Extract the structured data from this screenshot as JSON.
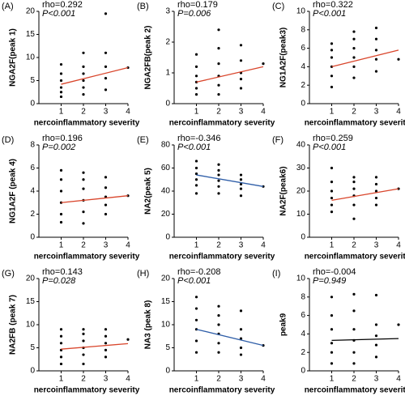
{
  "chart_data": [
    {
      "type": "scatter",
      "title": "(A)",
      "annotations": [
        "rho=0.292",
        "P<0.001"
      ],
      "x_label": "nercoinflammatory severity",
      "y_label": "NGA2F(peak 1)",
      "xlim": [
        0,
        4
      ],
      "ylim": [
        0,
        20
      ],
      "xticks": [
        1,
        2,
        3,
        4
      ],
      "yticks": [
        0,
        5,
        10,
        15,
        20
      ],
      "color": "#000000",
      "x": [
        1,
        1,
        1,
        1,
        1,
        1,
        2,
        2,
        2,
        2,
        2,
        2,
        3,
        3,
        3,
        3,
        3,
        4
      ],
      "y": [
        1.5,
        2.5,
        3.5,
        5,
        6.5,
        8.5,
        2,
        3.5,
        5,
        6.5,
        8,
        11,
        3,
        5.5,
        8,
        11,
        19.5,
        7.8
      ],
      "fit": {
        "color": "#d9452b",
        "x": [
          1,
          4
        ],
        "y": [
          4.2,
          7.8
        ]
      }
    },
    {
      "type": "scatter",
      "title": "(B)",
      "annotations": [
        "rho=0.179",
        "P=0.006"
      ],
      "x_label": "nercoinflammatory severity",
      "y_label": "NGA2FB(peak 2)",
      "xlim": [
        0,
        4
      ],
      "ylim": [
        0,
        3
      ],
      "xticks": [
        1,
        2,
        3,
        4
      ],
      "yticks": [
        0,
        1,
        2,
        3
      ],
      "color": "#000000",
      "x": [
        1,
        1,
        1,
        1,
        1,
        1,
        2,
        2,
        2,
        2,
        2,
        2,
        3,
        3,
        3,
        3,
        3,
        4
      ],
      "y": [
        0.3,
        0.5,
        0.7,
        0.9,
        1.2,
        1.6,
        0.3,
        0.6,
        0.9,
        1.3,
        1.8,
        2.4,
        0.5,
        0.8,
        1.0,
        1.4,
        1.9,
        1.3
      ],
      "fit": {
        "color": "#d9452b",
        "x": [
          1,
          4
        ],
        "y": [
          0.7,
          1.2
        ]
      }
    },
    {
      "type": "scatter",
      "title": "(C)",
      "annotations": [
        "rho=0.322",
        "P<0.001"
      ],
      "x_label": "nercoinflammatory severity",
      "y_label": "NG1A2F(peak3)",
      "xlim": [
        0,
        4
      ],
      "ylim": [
        0,
        10
      ],
      "xticks": [
        1,
        2,
        3,
        4
      ],
      "yticks": [
        0,
        2,
        4,
        6,
        8,
        10
      ],
      "color": "#000000",
      "x": [
        1,
        1,
        1,
        1,
        1,
        1,
        2,
        2,
        2,
        2,
        2,
        2,
        3,
        3,
        3,
        3,
        3,
        4
      ],
      "y": [
        1.8,
        3,
        4,
        5,
        5.8,
        6.5,
        2.8,
        4,
        5,
        6,
        7,
        7.8,
        3.5,
        4.8,
        5.8,
        7,
        8.2,
        4.8
      ],
      "fit": {
        "color": "#d9452b",
        "x": [
          1,
          4
        ],
        "y": [
          4.0,
          5.8
        ]
      }
    },
    {
      "type": "scatter",
      "title": "(D)",
      "annotations": [
        "rho=0.196",
        "P=0.002"
      ],
      "x_label": "nercoinflammatory severity",
      "y_label": "NG1A2F (peak 4)",
      "xlim": [
        0,
        4
      ],
      "ylim": [
        0,
        8
      ],
      "xticks": [
        1,
        2,
        3,
        4
      ],
      "yticks": [
        0,
        2,
        4,
        6,
        8
      ],
      "color": "#000000",
      "x": [
        1,
        1,
        1,
        1,
        1,
        1,
        2,
        2,
        2,
        2,
        2,
        2,
        3,
        3,
        3,
        3,
        3,
        4
      ],
      "y": [
        1.3,
        2,
        3,
        4,
        5,
        5.8,
        1.2,
        2.2,
        3.2,
        4.2,
        5,
        5.6,
        2,
        2.8,
        3.5,
        4.3,
        5.2,
        3.6
      ],
      "fit": {
        "color": "#d9452b",
        "x": [
          1,
          4
        ],
        "y": [
          3.0,
          3.6
        ]
      }
    },
    {
      "type": "scatter",
      "title": "(E)",
      "annotations": [
        "rho=-0.346",
        "P<0.001"
      ],
      "x_label": "nercoinflammatory severity",
      "y_label": "NA2(peak 5)",
      "xlim": [
        0,
        4
      ],
      "ylim": [
        0,
        80
      ],
      "xticks": [
        1,
        2,
        3,
        4
      ],
      "yticks": [
        0,
        20,
        40,
        60,
        80
      ],
      "color": "#000000",
      "x": [
        1,
        1,
        1,
        1,
        1,
        1,
        2,
        2,
        2,
        2,
        2,
        2,
        3,
        3,
        3,
        3,
        3,
        4
      ],
      "y": [
        38,
        45,
        50,
        55,
        60,
        66,
        38,
        44,
        49,
        54,
        58,
        63,
        36,
        42,
        46,
        50,
        54,
        44
      ],
      "fit": {
        "color": "#2f5ea8",
        "x": [
          1,
          4
        ],
        "y": [
          54,
          44
        ]
      }
    },
    {
      "type": "scatter",
      "title": "(F)",
      "annotations": [
        "rho=0.259",
        "P<0.001"
      ],
      "x_label": "nercoinflammatory severity",
      "y_label": "NA2F(peak6)",
      "xlim": [
        0,
        4
      ],
      "ylim": [
        0,
        40
      ],
      "xticks": [
        1,
        2,
        3,
        4
      ],
      "yticks": [
        0,
        10,
        20,
        30,
        40
      ],
      "color": "#000000",
      "x": [
        1,
        1,
        1,
        1,
        1,
        1,
        2,
        2,
        2,
        2,
        2,
        2,
        3,
        3,
        3,
        3,
        3,
        4
      ],
      "y": [
        11,
        14,
        17,
        20,
        24,
        30,
        8,
        14,
        18,
        21,
        24,
        26,
        14,
        17,
        20,
        23,
        26,
        21
      ],
      "fit": {
        "color": "#d9452b",
        "x": [
          1,
          4
        ],
        "y": [
          16,
          21
        ]
      }
    },
    {
      "type": "scatter",
      "title": "(G)",
      "annotations": [
        "rho=0.143",
        "P=0.028"
      ],
      "x_label": "nercoinflammatory severity",
      "y_label": "NA2FB (peak 7)",
      "xlim": [
        0,
        4
      ],
      "ylim": [
        0,
        20
      ],
      "xticks": [
        1,
        2,
        3,
        4
      ],
      "yticks": [
        0,
        5,
        10,
        15,
        20
      ],
      "color": "#000000",
      "x": [
        1,
        1,
        1,
        1,
        1,
        1,
        2,
        2,
        2,
        2,
        2,
        2,
        3,
        3,
        3,
        3,
        3,
        4
      ],
      "y": [
        1.5,
        3,
        4.5,
        6,
        7.5,
        9,
        1.5,
        3.5,
        5,
        6.5,
        8,
        9,
        3,
        4.5,
        6,
        7.5,
        9,
        6.8
      ],
      "fit": {
        "color": "#d9452b",
        "x": [
          1,
          4
        ],
        "y": [
          4.7,
          5.9
        ]
      }
    },
    {
      "type": "scatter",
      "title": "(H)",
      "annotations": [
        "rho=-0.208",
        "P<0.001"
      ],
      "x_label": "nercoinflammatory severity",
      "y_label": "NA3 (peak 8)",
      "xlim": [
        0,
        4
      ],
      "ylim": [
        0,
        20
      ],
      "xticks": [
        1,
        2,
        3,
        4
      ],
      "yticks": [
        0,
        5,
        10,
        15,
        20
      ],
      "color": "#000000",
      "x": [
        1,
        1,
        1,
        1,
        1,
        1,
        2,
        2,
        2,
        2,
        2,
        2,
        3,
        3,
        3,
        3,
        3,
        4
      ],
      "y": [
        4,
        6.5,
        9,
        11,
        13.5,
        16,
        4,
        6,
        8,
        10,
        12,
        14,
        3.5,
        5,
        7,
        9,
        13,
        5.5
      ],
      "fit": {
        "color": "#2f5ea8",
        "x": [
          1,
          4
        ],
        "y": [
          9,
          5.5
        ]
      }
    },
    {
      "type": "scatter",
      "title": "(I)",
      "annotations": [
        "rho=-0.004",
        "P=0.949"
      ],
      "x_label": "nercoinflammatory severity",
      "y_label": "peak9",
      "xlim": [
        0,
        4
      ],
      "ylim": [
        0,
        10
      ],
      "xticks": [
        1,
        2,
        3,
        4
      ],
      "yticks": [
        0,
        2,
        4,
        6,
        8,
        10
      ],
      "color": "#000000",
      "x": [
        1,
        1,
        1,
        1,
        1,
        1,
        2,
        2,
        2,
        2,
        2,
        2,
        3,
        3,
        3,
        3,
        3,
        4
      ],
      "y": [
        0.8,
        2,
        3,
        4.5,
        6,
        8,
        0.8,
        2,
        3.3,
        4.5,
        6.5,
        8.3,
        1.5,
        2.8,
        3.8,
        5,
        8.2,
        5
      ],
      "fit": {
        "color": "#000000",
        "x": [
          1,
          4
        ],
        "y": [
          3.3,
          3.5
        ]
      }
    }
  ]
}
